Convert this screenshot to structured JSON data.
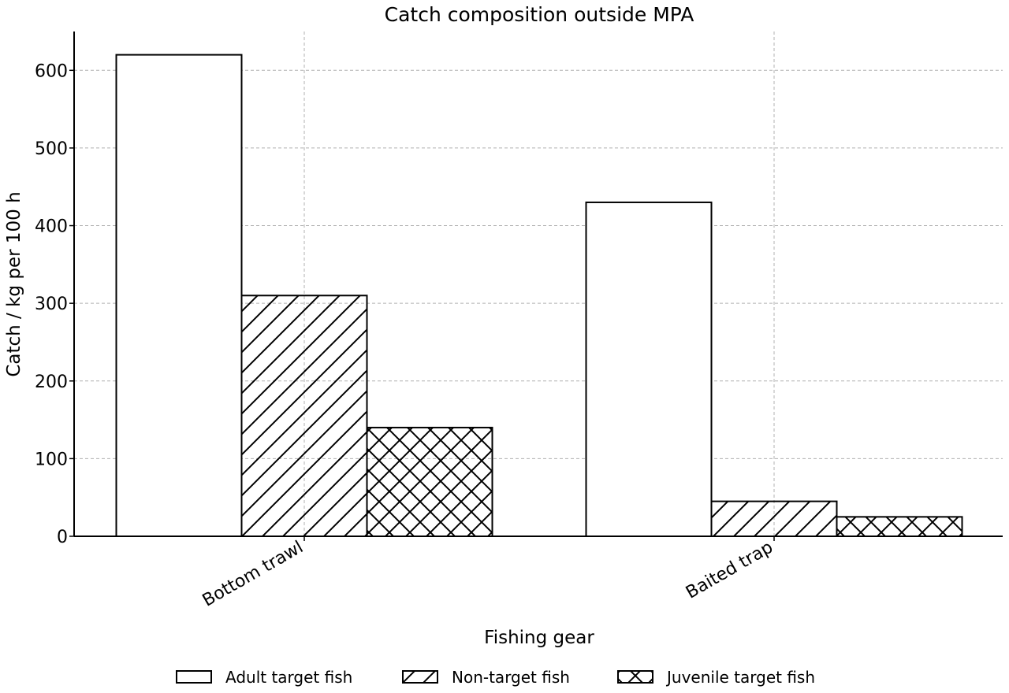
{
  "chart_data": {
    "type": "bar",
    "title": "Catch composition outside MPA",
    "xlabel": "Fishing gear",
    "ylabel": "Catch / kg per 100 h",
    "categories": [
      "Bottom trawl",
      "Baited trap"
    ],
    "series": [
      {
        "name": "Adult target fish",
        "values": [
          620,
          430
        ],
        "hatch": "none"
      },
      {
        "name": "Non-target fish",
        "values": [
          310,
          45
        ],
        "hatch": "diagonal"
      },
      {
        "name": "Juvenile target fish",
        "values": [
          140,
          25
        ],
        "hatch": "cross"
      }
    ],
    "ylim": [
      0,
      650
    ],
    "yticks": [
      0,
      100,
      200,
      300,
      400,
      500,
      600
    ],
    "grid": true,
    "legend_position": "bottom-center",
    "colors": {
      "bar_fill": "#ffffff",
      "bar_edge": "#000000",
      "grid": "#b0b0b0"
    }
  }
}
